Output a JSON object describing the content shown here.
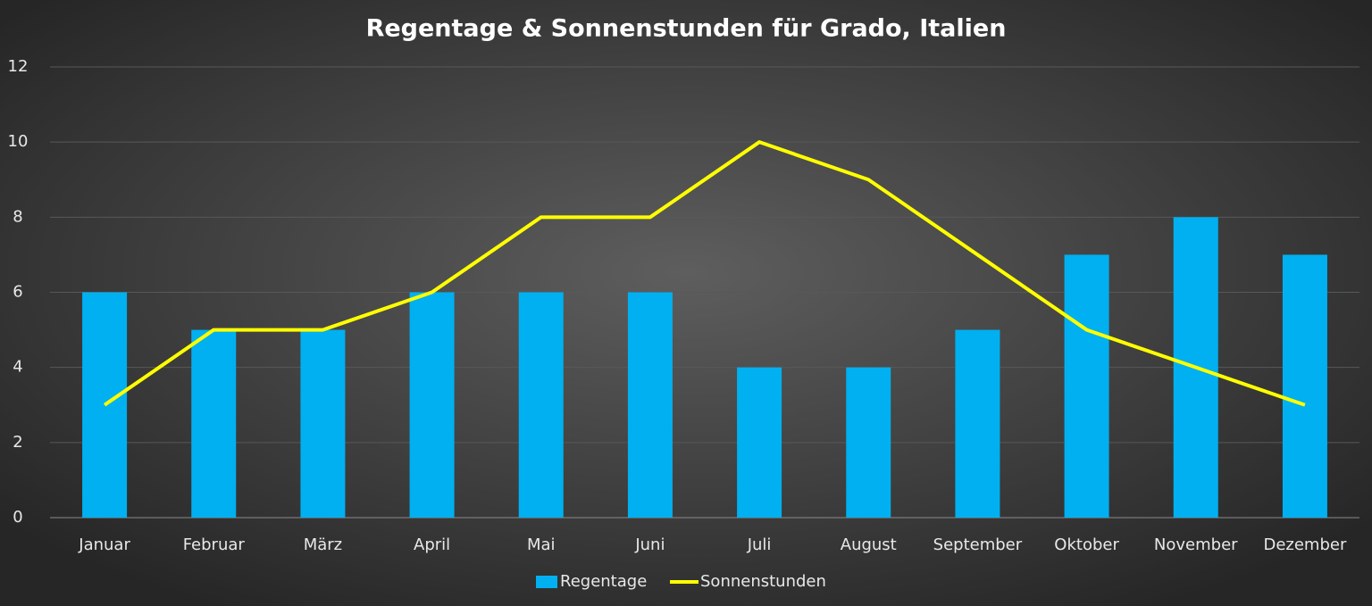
{
  "chart_data": {
    "type": "bar_line",
    "title": "Regentage & Sonnenstunden für Grado, Italien",
    "categories": [
      "Januar",
      "Februar",
      "März",
      "April",
      "Mai",
      "Juni",
      "Juli",
      "August",
      "September",
      "Oktober",
      "November",
      "Dezember"
    ],
    "series": [
      {
        "name": "Regentage",
        "type": "bar",
        "color": "#00b0f0",
        "values": [
          6,
          5,
          5,
          6,
          6,
          6,
          4,
          4,
          5,
          7,
          8,
          7
        ]
      },
      {
        "name": "Sonnenstunden",
        "type": "line",
        "color": "#ffff00",
        "values": [
          3,
          5,
          5,
          6,
          8,
          8,
          10,
          9,
          7,
          5,
          4,
          3
        ]
      }
    ],
    "ylim": [
      0,
      12
    ],
    "yticks": [
      0,
      2,
      4,
      6,
      8,
      10,
      12
    ],
    "grid": true,
    "legend": "bottom"
  }
}
